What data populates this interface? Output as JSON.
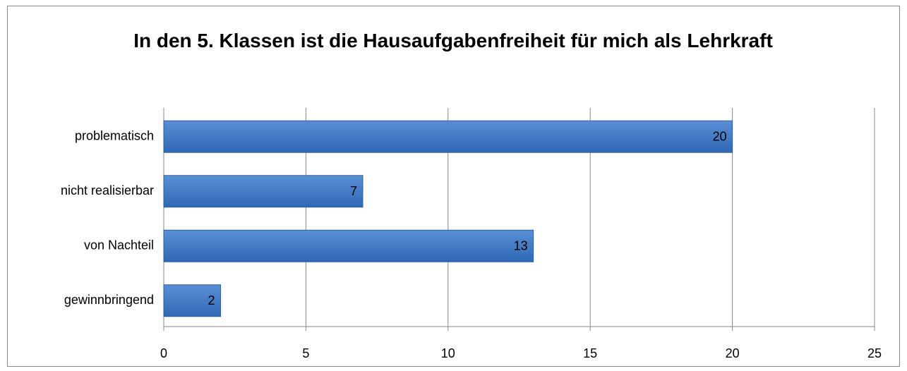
{
  "chart_data": {
    "type": "barh",
    "title": "In den 5. Klassen ist die Hausaufgabenfreiheit für mich als Lehrkraft",
    "categories": [
      "problematisch",
      "nicht realisierbar",
      "von Nachteil",
      "gewinnbringend"
    ],
    "values": [
      20,
      7,
      13,
      2
    ],
    "color": "#3f78c3",
    "xlim": [
      0,
      25
    ],
    "xticks": [
      0,
      5,
      10,
      15,
      20,
      25
    ],
    "grid": true
  }
}
